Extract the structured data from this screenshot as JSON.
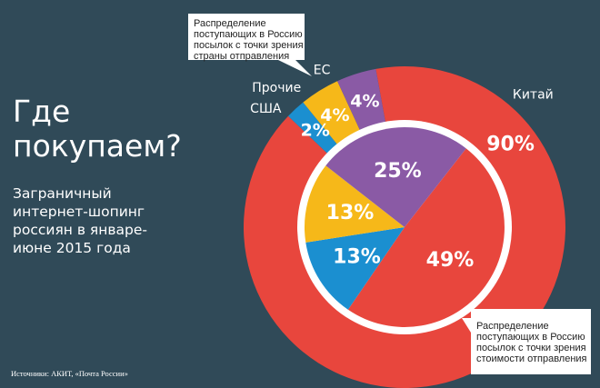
{
  "title": "Где покупаем?",
  "subtitle": "Заграничный интернет-шопинг россиян в январе-июне 2015 года",
  "source": "Источники: АКИТ, «Почта России»",
  "callouts": {
    "outer": [
      "Распределение",
      "поступающих в Россию",
      "посылок с точки зрения",
      "страны отправления"
    ],
    "inner": [
      "Распределение",
      "поступающих в Россию",
      "посылок с точки зрения",
      "стоимости отправления"
    ]
  },
  "chart_data": [
    {
      "type": "pie",
      "ring": "outer",
      "title": "Распределение поступающих в Россию посылок с точки зрения страны отправления",
      "categories": [
        "Китай",
        "США",
        "Прочие",
        "ЕС"
      ],
      "values": [
        90,
        2,
        4,
        4
      ],
      "labels": [
        "90%",
        "2%",
        "4%",
        "4%"
      ],
      "colors": [
        "#e8463d",
        "#1b8fd0",
        "#f6b819",
        "#8a5aa5"
      ]
    },
    {
      "type": "pie",
      "ring": "inner",
      "title": "Распределение поступающих в Россию посылок с точки зрения стоимости отправления",
      "categories": [
        "Китай",
        "США",
        "Прочие",
        "ЕС"
      ],
      "values": [
        49,
        13,
        13,
        25
      ],
      "labels": [
        "49%",
        "13%",
        "13%",
        "25%"
      ],
      "colors": [
        "#e8463d",
        "#1b8fd0",
        "#f6b819",
        "#8a5aa5"
      ]
    }
  ]
}
